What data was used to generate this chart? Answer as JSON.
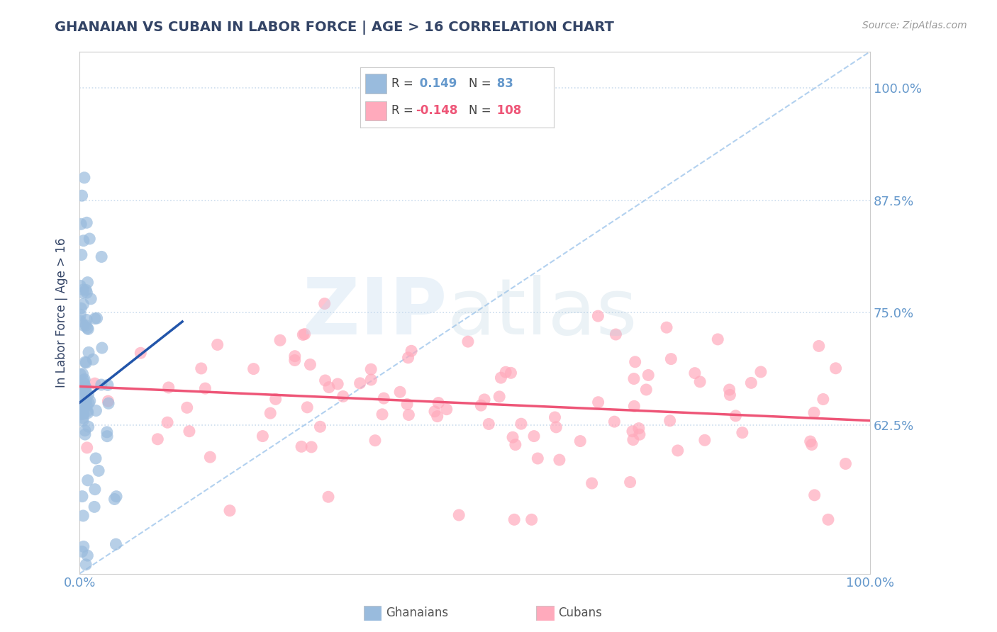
{
  "title": "GHANAIAN VS CUBAN IN LABOR FORCE | AGE > 16 CORRELATION CHART",
  "source": "Source: ZipAtlas.com",
  "ylabel": "In Labor Force | Age > 16",
  "xlim": [
    0.0,
    1.0
  ],
  "ylim": [
    0.46,
    1.04
  ],
  "yticks": [
    0.625,
    0.75,
    0.875,
    1.0
  ],
  "ytick_labels": [
    "62.5%",
    "75.0%",
    "87.5%",
    "100.0%"
  ],
  "r1": 0.149,
  "n1": 83,
  "r2": -0.148,
  "n2": 108,
  "blue_scatter_color": "#99BBDD",
  "pink_scatter_color": "#FFAABC",
  "blue_line_color": "#2255AA",
  "pink_line_color": "#EE5577",
  "diag_color": "#AACCEE",
  "title_color": "#334466",
  "tick_label_color": "#6699CC",
  "ylabel_color": "#334466",
  "grid_color": "#CCDDEE",
  "background_color": "#FFFFFF",
  "source_color": "#999999"
}
